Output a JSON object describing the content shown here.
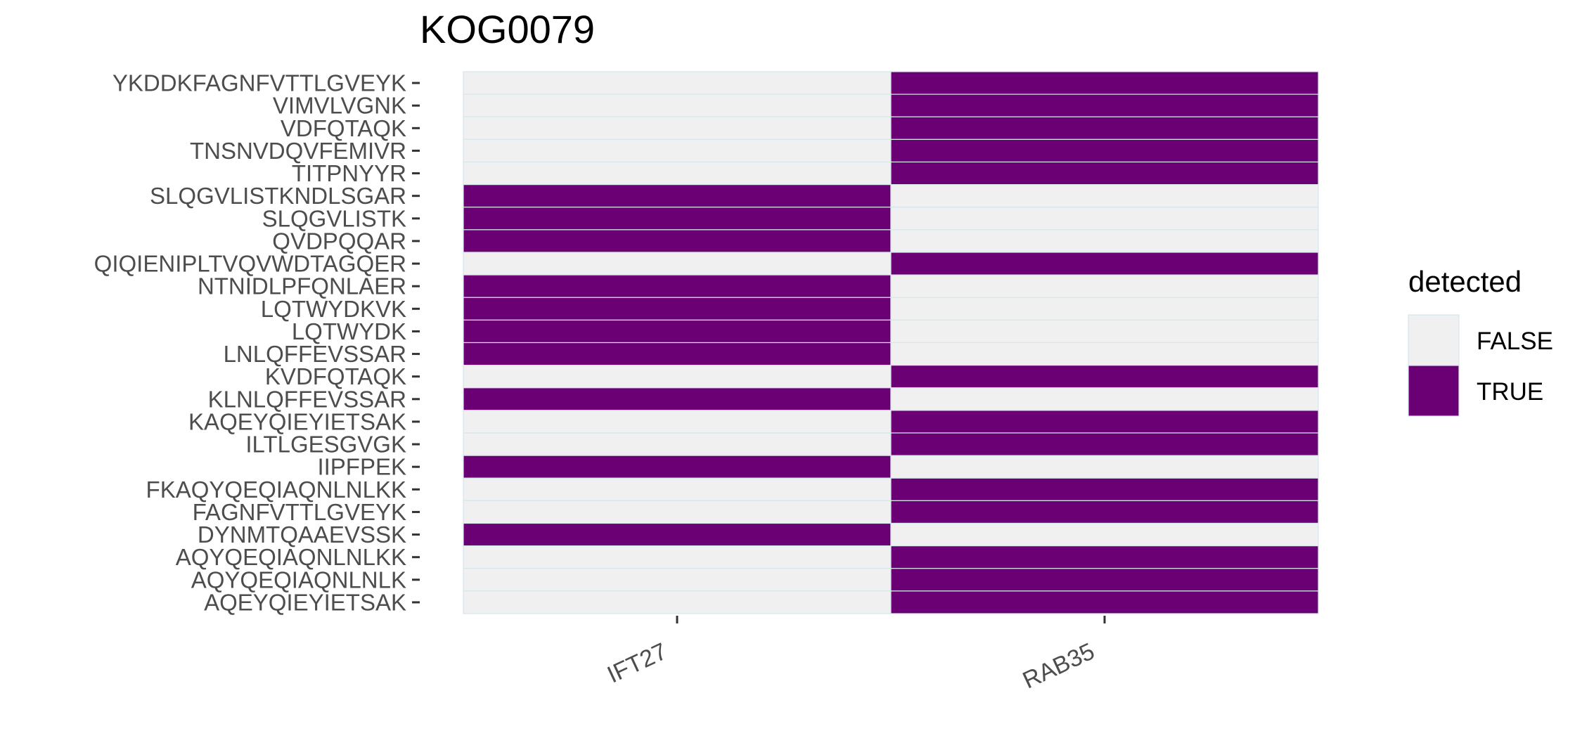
{
  "chart_data": {
    "type": "heatmap",
    "title": "KOG0079",
    "xlabel": "",
    "ylabel": "",
    "x_categories": [
      "IFT27",
      "RAB35"
    ],
    "y_categories": [
      "YKDDKFAGNFVTTLGVEYK",
      "VIMVLVGNK",
      "VDFQTAQK",
      "TNSNVDQVFEMIVR",
      "TITPNYYR",
      "SLQGVLISTKNDLSGAR",
      "SLQGVLISTK",
      "QVDPQQAR",
      "QIQIENIPLTVQVWDTAGQER",
      "NTNIDLPFQNLAER",
      "LQTWYDKVK",
      "LQTWYDK",
      "LNLQFFEVSSAR",
      "KVDFQTAQK",
      "KLNLQFFEVSSAR",
      "KAQEYQIEYIETSAK",
      "ILTLGESGVGK",
      "IIPFPEK",
      "FKAQYQEQIAQNLNLKK",
      "FAGNFVTTLGVEYK",
      "DYNMTQAAEVSSK",
      "AQYQEQIAQNLNLKK",
      "AQYQEQIAQNLNLK",
      "AQEYQIEYIETSAK"
    ],
    "detected": [
      [
        "FALSE",
        "TRUE"
      ],
      [
        "FALSE",
        "TRUE"
      ],
      [
        "FALSE",
        "TRUE"
      ],
      [
        "FALSE",
        "TRUE"
      ],
      [
        "FALSE",
        "TRUE"
      ],
      [
        "TRUE",
        "FALSE"
      ],
      [
        "TRUE",
        "FALSE"
      ],
      [
        "TRUE",
        "FALSE"
      ],
      [
        "FALSE",
        "TRUE"
      ],
      [
        "TRUE",
        "FALSE"
      ],
      [
        "TRUE",
        "FALSE"
      ],
      [
        "TRUE",
        "FALSE"
      ],
      [
        "TRUE",
        "FALSE"
      ],
      [
        "FALSE",
        "TRUE"
      ],
      [
        "TRUE",
        "FALSE"
      ],
      [
        "FALSE",
        "TRUE"
      ],
      [
        "FALSE",
        "TRUE"
      ],
      [
        "TRUE",
        "FALSE"
      ],
      [
        "FALSE",
        "TRUE"
      ],
      [
        "FALSE",
        "TRUE"
      ],
      [
        "TRUE",
        "FALSE"
      ],
      [
        "FALSE",
        "TRUE"
      ],
      [
        "FALSE",
        "TRUE"
      ],
      [
        "FALSE",
        "TRUE"
      ]
    ],
    "legend": {
      "title": "detected",
      "position": "right",
      "entries": [
        {
          "label": "FALSE",
          "color": "#f0f0f0"
        },
        {
          "label": "TRUE",
          "color": "#6a0073"
        }
      ]
    },
    "cell_border_color": "#d6e6ec",
    "grid": false
  }
}
